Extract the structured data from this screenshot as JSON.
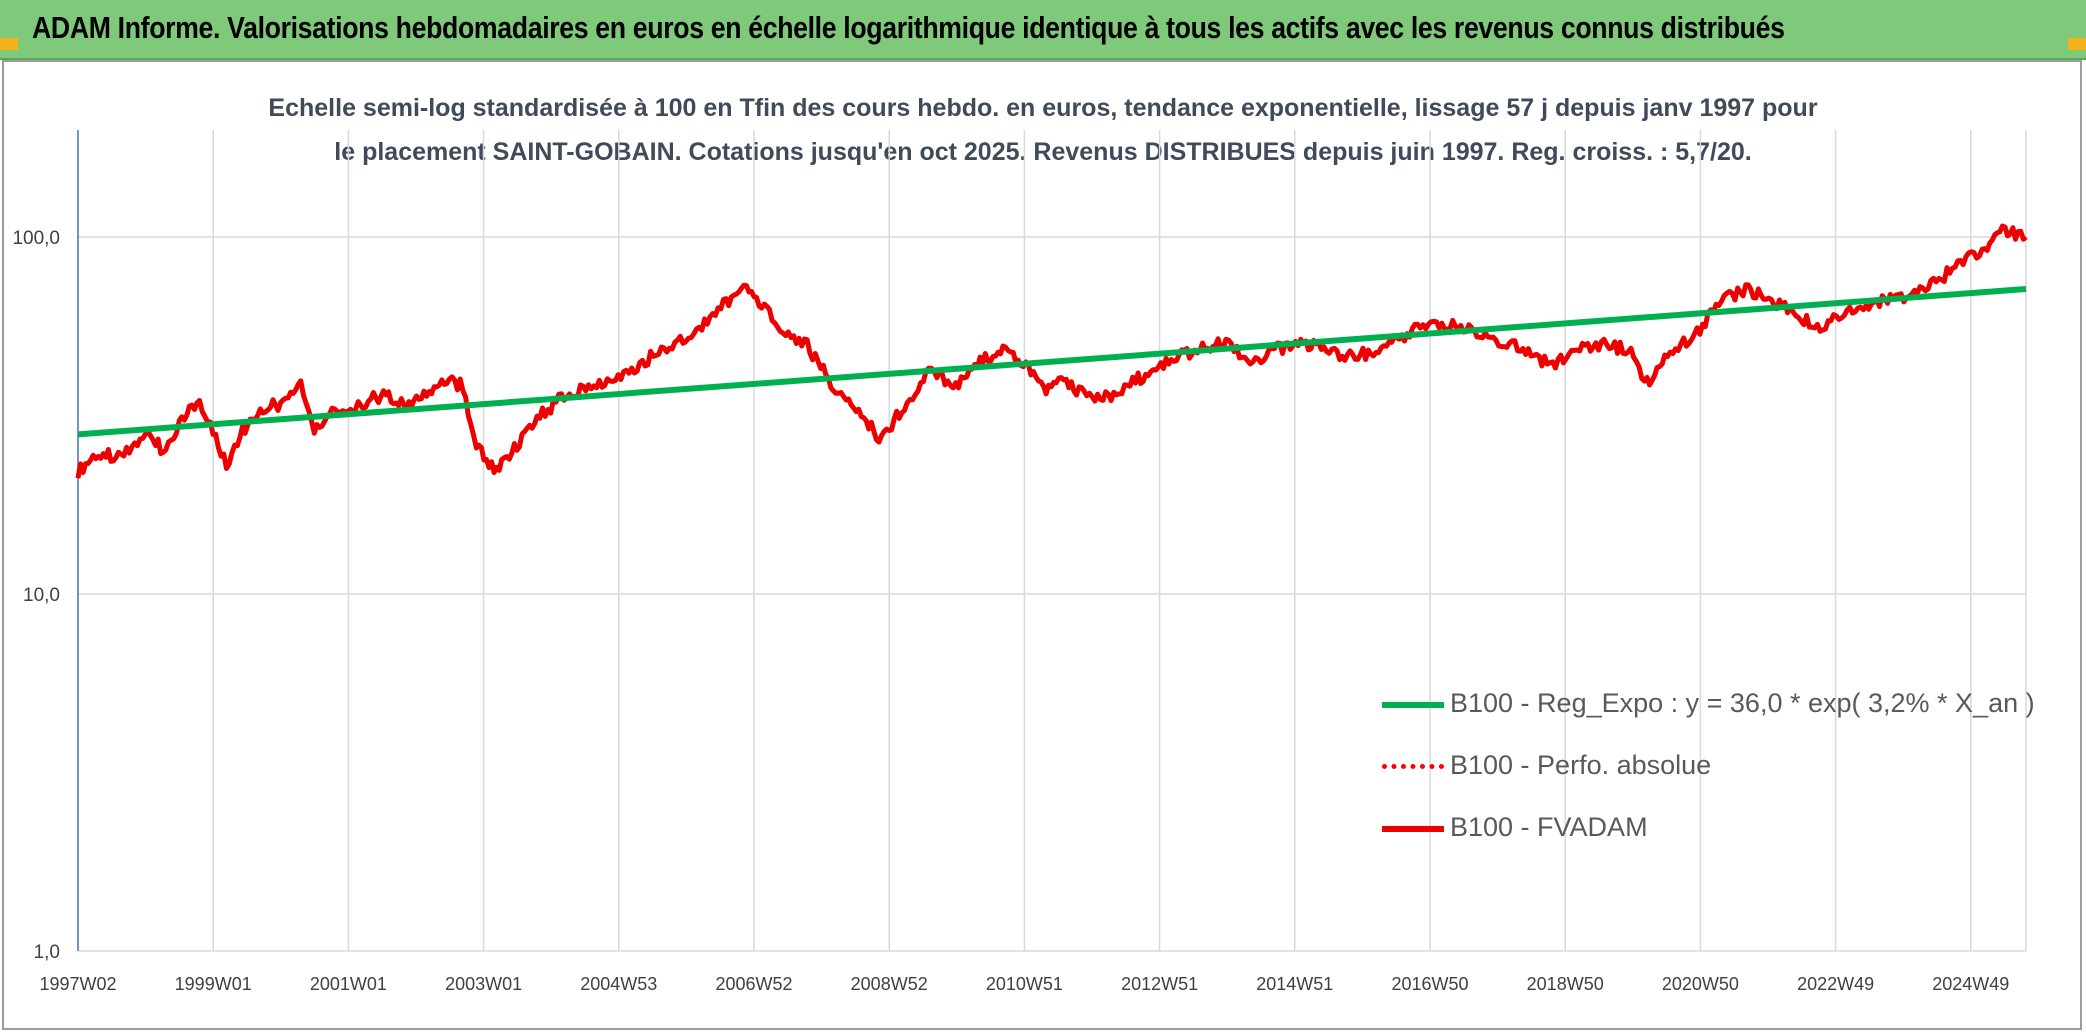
{
  "header": {
    "title": "ADAM Informe. Valorisations hebdomadaires en euros en échelle logarithmique identique à tous les actifs avec les revenus connus distribués"
  },
  "chart_data": {
    "type": "line",
    "title": "Echelle semi-log standardisée à 100 en Tfin des cours hebdo. en euros, tendance exponentielle, lissage 57 j depuis janv 1997 pour le placement SAINT-GOBAIN. Cotations jusqu'en oct 2025. Revenus DISTRIBUES depuis juin 1997. Reg. croiss. : 5,7/20.",
    "y_scale": "log",
    "ylim": [
      1,
      100
    ],
    "y_ticks": [
      "1,0",
      "10,0",
      "100,0"
    ],
    "x_ticks": [
      "1997W02",
      "1999W01",
      "2001W01",
      "2003W01",
      "2004W53",
      "2006W52",
      "2008W52",
      "2010W51",
      "2012W51",
      "2014W51",
      "2016W50",
      "2018W50",
      "2020W50",
      "2022W49",
      "2024W49"
    ],
    "x_range_years": [
      1997.0,
      2025.85
    ],
    "grid": true,
    "legend_position": "bottom-right",
    "series": [
      {
        "name": "B100 - Reg_Expo : y = 36,0 * exp( 3,2% *  X_an )",
        "color": "#00b050",
        "style": "solid",
        "x": [
          1997.0,
          2025.85
        ],
        "y": [
          28.0,
          71.5
        ]
      },
      {
        "name": "B100 - Perfo. absolue",
        "color": "#ff0000",
        "style": "dotted",
        "x": [],
        "y": []
      },
      {
        "name": "B100 - FVADAM",
        "color": "#ee0000",
        "style": "solid",
        "x": [
          1997.0,
          1997.3,
          1997.6,
          1998.0,
          1998.3,
          1998.5,
          1998.8,
          1999.0,
          1999.2,
          1999.4,
          1999.7,
          2000.0,
          2000.3,
          2000.5,
          2000.8,
          2001.0,
          2001.3,
          2001.6,
          2001.9,
          2002.2,
          2002.5,
          2002.7,
          2002.9,
          2003.2,
          2003.5,
          2003.8,
          2004.2,
          2004.6,
          2005.0,
          2005.4,
          2005.8,
          2006.2,
          2006.6,
          2006.9,
          2007.2,
          2007.6,
          2007.8,
          2008.0,
          2008.3,
          2008.6,
          2008.9,
          2009.2,
          2009.6,
          2010.0,
          2010.4,
          2010.7,
          2011.0,
          2011.3,
          2011.6,
          2011.9,
          2012.3,
          2012.7,
          2013.0,
          2013.5,
          2014.0,
          2014.4,
          2014.8,
          2015.3,
          2015.8,
          2016.3,
          2016.8,
          2017.2,
          2017.6,
          2018.0,
          2018.4,
          2018.8,
          2019.2,
          2019.6,
          2020.0,
          2020.2,
          2020.5,
          2020.9,
          2021.3,
          2021.7,
          2022.0,
          2022.4,
          2022.8,
          2023.2,
          2023.6,
          2024.0,
          2024.4,
          2024.8,
          2025.2,
          2025.5,
          2025.85
        ],
        "y": [
          22,
          25,
          24,
          28,
          25,
          30,
          35,
          28,
          23,
          28,
          33,
          34,
          38,
          29,
          33,
          32,
          35,
          36,
          34,
          37,
          40,
          38,
          26,
          22,
          26,
          31,
          36,
          38,
          41,
          45,
          50,
          56,
          66,
          72,
          62,
          51,
          50,
          43,
          36,
          32,
          27,
          33,
          42,
          38,
          45,
          48,
          45,
          37,
          40,
          36,
          36,
          40,
          44,
          48,
          51,
          44,
          49,
          50,
          46,
          48,
          55,
          58,
          55,
          52,
          48,
          44,
          48,
          50,
          48,
          38,
          46,
          52,
          65,
          72,
          68,
          62,
          55,
          62,
          66,
          68,
          72,
          82,
          92,
          104,
          100
        ]
      }
    ]
  }
}
